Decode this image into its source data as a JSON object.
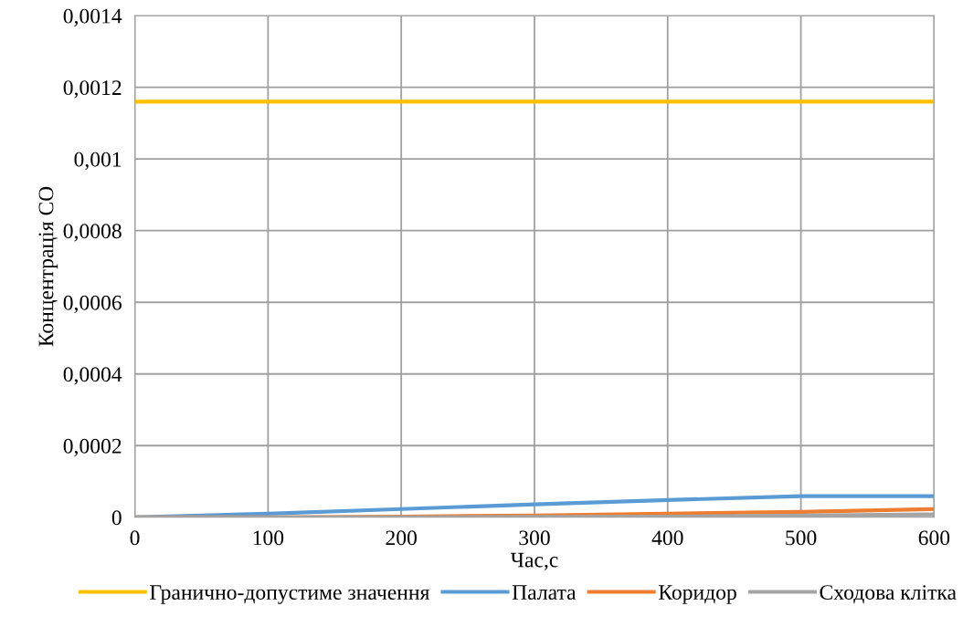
{
  "chart_data": {
    "type": "line",
    "xlabel": "Час,с",
    "ylabel": "Концентрація CO",
    "x": [
      0,
      100,
      200,
      300,
      400,
      500,
      600
    ],
    "series": [
      {
        "name": "Гранично-допустиме значення",
        "color": "#ffc000",
        "values": [
          0.00116,
          0.00116,
          0.00116,
          0.00116,
          0.00116,
          0.00116,
          0.00116
        ]
      },
      {
        "name": "Палата",
        "color": "#5b9bd5",
        "values": [
          0,
          1e-05,
          2.3e-05,
          3.6e-05,
          4.8e-05,
          5.9e-05,
          5.9e-05
        ]
      },
      {
        "name": "Коридор",
        "color": "#ed7d31",
        "values": [
          0,
          0,
          2e-06,
          5e-06,
          1e-05,
          1.5e-05,
          2.3e-05
        ]
      },
      {
        "name": "Сходова клітка",
        "color": "#a5a5a5",
        "values": [
          0,
          0,
          0,
          1e-06,
          2e-06,
          5e-06,
          8e-06
        ]
      }
    ],
    "xlim": [
      0,
      600
    ],
    "xticks": [
      0,
      100,
      200,
      300,
      400,
      500,
      600
    ],
    "ylim": [
      0,
      0.0014
    ],
    "yticks": [
      {
        "value": 0,
        "label": "0"
      },
      {
        "value": 0.0002,
        "label": "0,0002"
      },
      {
        "value": 0.0004,
        "label": "0,0004"
      },
      {
        "value": 0.0006,
        "label": "0,0006"
      },
      {
        "value": 0.0008,
        "label": "0,0008"
      },
      {
        "value": 0.001,
        "label": "0,001"
      },
      {
        "value": 0.0012,
        "label": "0,0012"
      },
      {
        "value": 0.0014,
        "label": "0,0014"
      }
    ],
    "grid": true,
    "legend": "bottom",
    "marker": "none",
    "line_style": "solid"
  }
}
